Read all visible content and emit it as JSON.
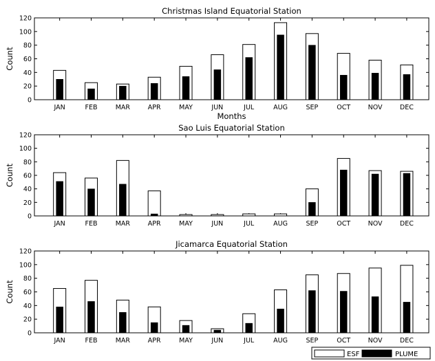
{
  "chart_data": [
    {
      "type": "bar",
      "title": "Christmas Island Equatorial Station",
      "xlabel": "Months",
      "ylabel": "Count",
      "ylim": [
        0,
        120
      ],
      "yticks": [
        0,
        20,
        40,
        60,
        80,
        100,
        120
      ],
      "categories": [
        "JAN",
        "FEB",
        "MAR",
        "APR",
        "MAY",
        "JUN",
        "JUL",
        "AUG",
        "SEP",
        "OCT",
        "NOV",
        "DEC"
      ],
      "series": [
        {
          "name": "ESF",
          "color": "#ffffff",
          "values": [
            43,
            25,
            23,
            33,
            49,
            66,
            81,
            113,
            97,
            68,
            58,
            51
          ]
        },
        {
          "name": "PLUME",
          "color": "#000000",
          "values": [
            30,
            16,
            20,
            24,
            34,
            44,
            62,
            95,
            80,
            36,
            39,
            37
          ]
        }
      ]
    },
    {
      "type": "bar",
      "title": "Sao Luis Equatorial Station",
      "xlabel": "",
      "ylabel": "Count",
      "ylim": [
        0,
        120
      ],
      "yticks": [
        0,
        20,
        40,
        60,
        80,
        100,
        120
      ],
      "categories": [
        "JAN",
        "FEB",
        "MAR",
        "APR",
        "MAY",
        "JUN",
        "JUL",
        "AUG",
        "SEP",
        "OCT",
        "NOV",
        "DEC"
      ],
      "series": [
        {
          "name": "ESF",
          "color": "#ffffff",
          "values": [
            64,
            56,
            82,
            37,
            2,
            2,
            3,
            3,
            40,
            85,
            67,
            66
          ]
        },
        {
          "name": "PLUME",
          "color": "#000000",
          "values": [
            51,
            40,
            47,
            3,
            0,
            0,
            0,
            0,
            20,
            68,
            62,
            63
          ]
        }
      ]
    },
    {
      "type": "bar",
      "title": "Jicamarca Equatorial Station",
      "xlabel": "",
      "ylabel": "Count",
      "ylim": [
        0,
        120
      ],
      "yticks": [
        0,
        20,
        40,
        60,
        80,
        100,
        120
      ],
      "categories": [
        "JAN",
        "FEB",
        "MAR",
        "APR",
        "MAY",
        "JUN",
        "JUL",
        "AUG",
        "SEP",
        "OCT",
        "NOV",
        "DEC"
      ],
      "series": [
        {
          "name": "ESF",
          "color": "#ffffff",
          "values": [
            65,
            77,
            48,
            38,
            18,
            6,
            28,
            63,
            85,
            87,
            95,
            99
          ]
        },
        {
          "name": "PLUME",
          "color": "#000000",
          "values": [
            38,
            46,
            30,
            15,
            11,
            4,
            14,
            35,
            62,
            61,
            53,
            45
          ]
        }
      ]
    }
  ],
  "legend": {
    "placement": "bottom-right",
    "entries": [
      {
        "label": "ESF",
        "color": "#ffffff"
      },
      {
        "label": "PLUME",
        "color": "#000000"
      }
    ]
  }
}
